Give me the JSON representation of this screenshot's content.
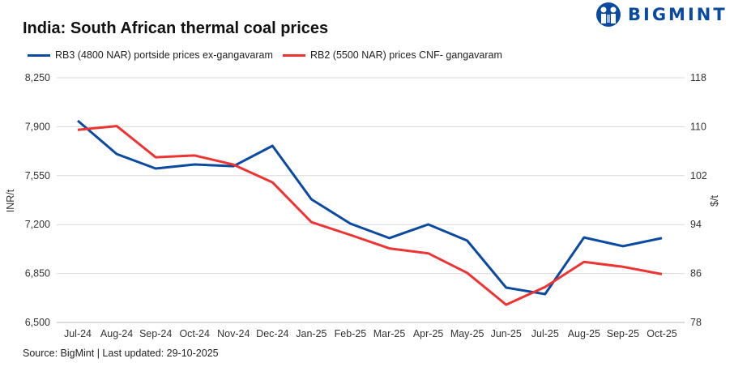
{
  "chart_data": {
    "type": "line",
    "title": "India: South African thermal coal prices",
    "categories": [
      "Jul-24",
      "Aug-24",
      "Sep-24",
      "Oct-24",
      "Nov-24",
      "Dec-24",
      "Jan-25",
      "Feb-25",
      "Mar-25",
      "Apr-25",
      "May-25",
      "Jun-25",
      "Jul-25",
      "Aug-25",
      "Sep-25",
      "Oct-25"
    ],
    "series": [
      {
        "name": "RB3 (4800 NAR) portside prices ex-gangavaram",
        "axis": "left",
        "color": "#0a4aa0",
        "values": [
          7943,
          7705,
          7601,
          7630,
          7618,
          7763,
          7381,
          7207,
          7103,
          7201,
          7085,
          6749,
          6703,
          7108,
          7045,
          7103
        ]
      },
      {
        "name": "RB2 (5500 NAR) prices CNF- gangavaram",
        "axis": "right",
        "color": "#ee3333",
        "values": [
          109.5,
          110.1,
          105.0,
          105.3,
          103.8,
          100.9,
          94.4,
          92.3,
          90.1,
          89.3,
          86.1,
          80.9,
          83.8,
          87.9,
          87.1,
          85.9
        ]
      }
    ],
    "ylabel": "INR/t",
    "y2label": "$/t",
    "ylim": [
      6500,
      8250
    ],
    "y2lim": [
      78,
      118
    ],
    "yticks": [
      "8,250",
      "7,900",
      "7,550",
      "7,200",
      "6,850",
      "6,500"
    ],
    "y2ticks": [
      "118",
      "110",
      "102",
      "94",
      "86",
      "78"
    ],
    "grid": true,
    "legend": "top-left"
  },
  "logo": {
    "text": "BIGMINT"
  },
  "source": "Source: BigMint | Last updated: 29-10-2025"
}
